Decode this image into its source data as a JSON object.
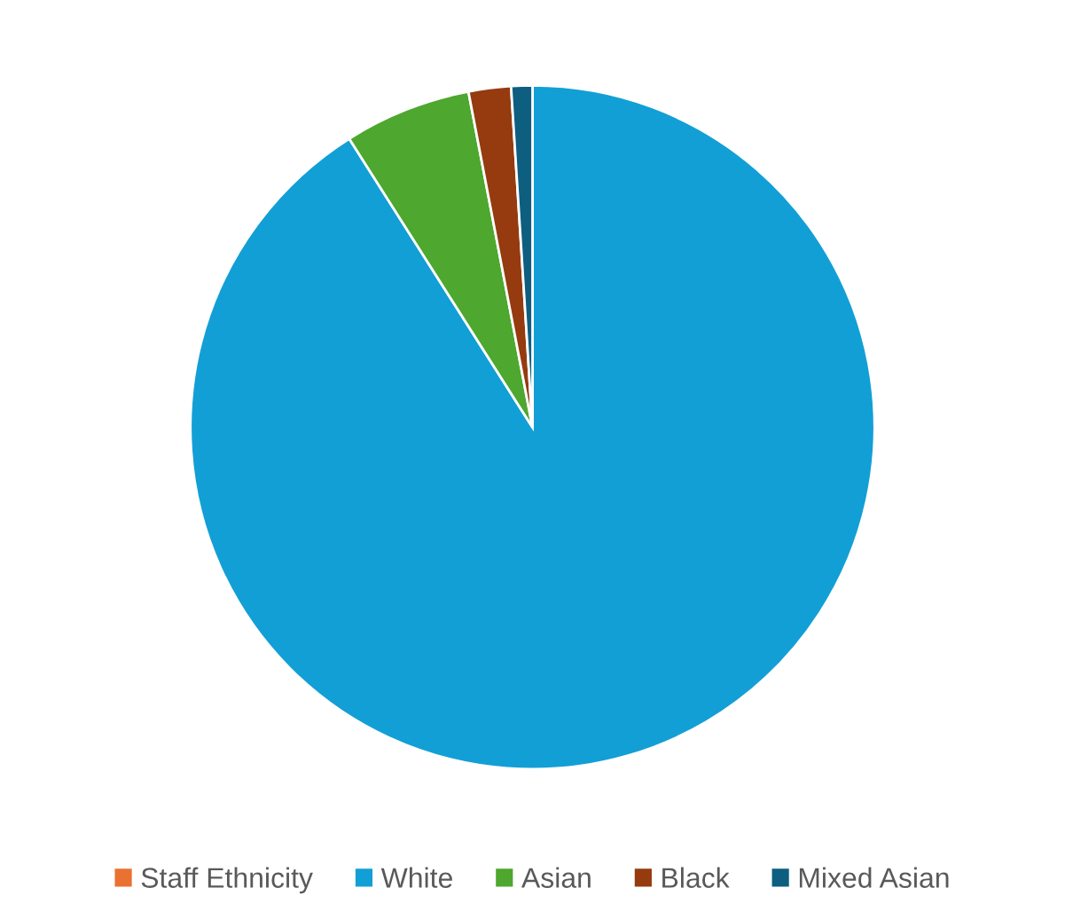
{
  "chart_data": {
    "type": "pie",
    "categories": [
      "Staff Ethnicity",
      "White",
      "Asian",
      "Black",
      "Mixed Asian"
    ],
    "values": [
      0,
      91,
      6,
      2,
      1
    ],
    "colors": [
      "#e97132",
      "#129fd6",
      "#4ea72e",
      "#953b0f",
      "#0e5e80"
    ],
    "legend": "bottom"
  }
}
